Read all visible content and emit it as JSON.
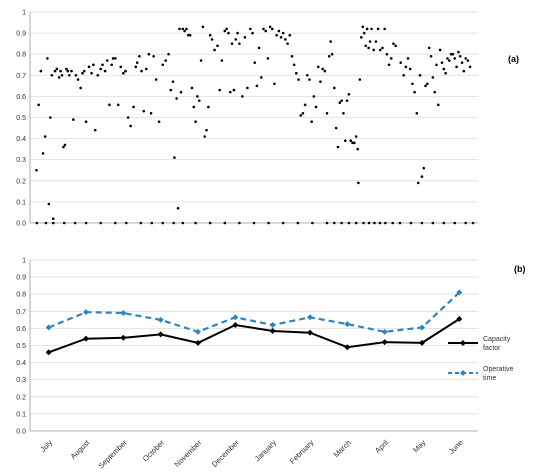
{
  "chart_data": [
    {
      "panel_label": "(a)",
      "type": "scatter",
      "ylim": [
        0,
        1
      ],
      "yticks": [
        "0.0",
        "0.1",
        "0.2",
        "0.3",
        "0.4",
        "0.5",
        "0.6",
        "0.7",
        "0.8",
        "0.9",
        "1"
      ],
      "grid": true,
      "x_unit": "month index (0 = start of July, 12 = end of June)",
      "points": [
        [
          0.04,
          0.25
        ],
        [
          0.1,
          0.56
        ],
        [
          0.16,
          0.72
        ],
        [
          0.22,
          0.33
        ],
        [
          0.28,
          0.41
        ],
        [
          0.34,
          0.78
        ],
        [
          0.38,
          0.09
        ],
        [
          0.42,
          0.5
        ],
        [
          0.46,
          0.7
        ],
        [
          0.5,
          0.02
        ],
        [
          0.55,
          0.72
        ],
        [
          0.6,
          0.73
        ],
        [
          0.66,
          0.69
        ],
        [
          0.7,
          0.72
        ],
        [
          0.74,
          0.7
        ],
        [
          0.78,
          0.36
        ],
        [
          0.82,
          0.37
        ],
        [
          0.86,
          0.73
        ],
        [
          0.9,
          0.72
        ],
        [
          0.94,
          0.7
        ],
        [
          1.0,
          0.72
        ],
        [
          1.05,
          0.49
        ],
        [
          1.12,
          0.7
        ],
        [
          1.18,
          0.68
        ],
        [
          1.25,
          0.64
        ],
        [
          1.3,
          0.71
        ],
        [
          1.35,
          0.72
        ],
        [
          1.4,
          0.48
        ],
        [
          1.48,
          0.74
        ],
        [
          1.55,
          0.71
        ],
        [
          1.6,
          0.75
        ],
        [
          1.65,
          0.44
        ],
        [
          1.72,
          0.7
        ],
        [
          1.8,
          0.73
        ],
        [
          1.85,
          0.75
        ],
        [
          1.92,
          0.72
        ],
        [
          1.98,
          0.77
        ],
        [
          2.04,
          0.56
        ],
        [
          2.1,
          0.75
        ],
        [
          2.14,
          0.78
        ],
        [
          2.2,
          0.78
        ],
        [
          2.28,
          0.56
        ],
        [
          2.35,
          0.74
        ],
        [
          2.42,
          0.71
        ],
        [
          2.48,
          0.72
        ],
        [
          2.55,
          0.5
        ],
        [
          2.62,
          0.46
        ],
        [
          2.7,
          0.55
        ],
        [
          2.76,
          0.74
        ],
        [
          2.8,
          0.76
        ],
        [
          2.86,
          0.79
        ],
        [
          2.92,
          0.72
        ],
        [
          2.98,
          0.53
        ],
        [
          3.05,
          0.73
        ],
        [
          3.12,
          0.8
        ],
        [
          3.18,
          0.52
        ],
        [
          3.25,
          0.79
        ],
        [
          3.32,
          0.68
        ],
        [
          3.4,
          0.48
        ],
        [
          3.5,
          0.75
        ],
        [
          3.58,
          0.77
        ],
        [
          3.66,
          0.8
        ],
        [
          3.72,
          0.63
        ],
        [
          3.78,
          0.67
        ],
        [
          3.82,
          0.31
        ],
        [
          3.88,
          0.59
        ],
        [
          3.92,
          0.07
        ],
        [
          3.96,
          0.92
        ],
        [
          4.0,
          0.62
        ],
        [
          4.05,
          0.92
        ],
        [
          4.1,
          0.91
        ],
        [
          4.15,
          0.92
        ],
        [
          4.2,
          0.89
        ],
        [
          4.25,
          0.89
        ],
        [
          4.3,
          0.64
        ],
        [
          4.35,
          0.55
        ],
        [
          4.4,
          0.48
        ],
        [
          4.45,
          0.6
        ],
        [
          4.5,
          0.58
        ],
        [
          4.55,
          0.77
        ],
        [
          4.6,
          0.93
        ],
        [
          4.65,
          0.41
        ],
        [
          4.7,
          0.44
        ],
        [
          4.75,
          0.55
        ],
        [
          4.8,
          0.89
        ],
        [
          4.85,
          0.87
        ],
        [
          4.92,
          0.82
        ],
        [
          5.0,
          0.84
        ],
        [
          5.06,
          0.63
        ],
        [
          5.12,
          0.77
        ],
        [
          5.2,
          0.91
        ],
        [
          5.25,
          0.92
        ],
        [
          5.3,
          0.9
        ],
        [
          5.35,
          0.62
        ],
        [
          5.4,
          0.85
        ],
        [
          5.45,
          0.63
        ],
        [
          5.5,
          0.87
        ],
        [
          5.55,
          0.9
        ],
        [
          5.6,
          0.85
        ],
        [
          5.68,
          0.6
        ],
        [
          5.75,
          0.88
        ],
        [
          5.82,
          0.64
        ],
        [
          5.9,
          0.92
        ],
        [
          5.96,
          0.9
        ],
        [
          6.02,
          0.76
        ],
        [
          6.08,
          0.65
        ],
        [
          6.14,
          0.83
        ],
        [
          6.2,
          0.69
        ],
        [
          6.26,
          0.92
        ],
        [
          6.32,
          0.91
        ],
        [
          6.38,
          0.78
        ],
        [
          6.44,
          0.93
        ],
        [
          6.5,
          0.92
        ],
        [
          6.56,
          0.66
        ],
        [
          6.62,
          0.89
        ],
        [
          6.68,
          0.91
        ],
        [
          6.74,
          0.88
        ],
        [
          6.8,
          0.9
        ],
        [
          6.86,
          0.87
        ],
        [
          6.92,
          0.85
        ],
        [
          6.98,
          0.89
        ],
        [
          7.04,
          0.79
        ],
        [
          7.1,
          0.75
        ],
        [
          7.16,
          0.71
        ],
        [
          7.22,
          0.68
        ],
        [
          7.28,
          0.51
        ],
        [
          7.34,
          0.52
        ],
        [
          7.4,
          0.56
        ],
        [
          7.46,
          0.7
        ],
        [
          7.52,
          0.68
        ],
        [
          7.58,
          0.48
        ],
        [
          7.64,
          0.6
        ],
        [
          7.7,
          0.55
        ],
        [
          7.76,
          0.74
        ],
        [
          7.82,
          0.67
        ],
        [
          7.88,
          0.73
        ],
        [
          7.94,
          0.72
        ],
        [
          8.0,
          0.52
        ],
        [
          8.06,
          0.79
        ],
        [
          8.1,
          0.86
        ],
        [
          8.14,
          0.8
        ],
        [
          8.2,
          0.64
        ],
        [
          8.25,
          0.45
        ],
        [
          8.3,
          0.36
        ],
        [
          8.35,
          0.57
        ],
        [
          8.4,
          0.58
        ],
        [
          8.45,
          0.52
        ],
        [
          8.5,
          0.39
        ],
        [
          8.55,
          0.58
        ],
        [
          8.6,
          0.61
        ],
        [
          8.65,
          0.39
        ],
        [
          8.7,
          0.38
        ],
        [
          8.75,
          0.38
        ],
        [
          8.8,
          0.41
        ],
        [
          8.84,
          0.35
        ],
        [
          8.86,
          0.19
        ],
        [
          8.9,
          0.68
        ],
        [
          8.94,
          0.88
        ],
        [
          8.98,
          0.93
        ],
        [
          9.02,
          0.9
        ],
        [
          9.06,
          0.84
        ],
        [
          9.1,
          0.92
        ],
        [
          9.14,
          0.83
        ],
        [
          9.18,
          0.86
        ],
        [
          9.22,
          0.92
        ],
        [
          9.28,
          0.82
        ],
        [
          9.34,
          0.86
        ],
        [
          9.4,
          0.92
        ],
        [
          9.46,
          0.82
        ],
        [
          9.52,
          0.83
        ],
        [
          9.58,
          0.92
        ],
        [
          9.64,
          0.8
        ],
        [
          9.7,
          0.75
        ],
        [
          9.76,
          0.78
        ],
        [
          9.82,
          0.85
        ],
        [
          9.88,
          0.84
        ],
        [
          10.02,
          0.76
        ],
        [
          10.1,
          0.7
        ],
        [
          10.16,
          0.74
        ],
        [
          10.22,
          0.78
        ],
        [
          10.28,
          0.73
        ],
        [
          10.34,
          0.66
        ],
        [
          10.4,
          0.62
        ],
        [
          10.46,
          0.52
        ],
        [
          10.5,
          0.19
        ],
        [
          10.55,
          0.7
        ],
        [
          10.6,
          0.22
        ],
        [
          10.65,
          0.26
        ],
        [
          10.7,
          0.65
        ],
        [
          10.75,
          0.66
        ],
        [
          10.8,
          0.83
        ],
        [
          10.85,
          0.79
        ],
        [
          10.9,
          0.69
        ],
        [
          10.95,
          0.62
        ],
        [
          11.0,
          0.75
        ],
        [
          11.05,
          0.56
        ],
        [
          11.1,
          0.82
        ],
        [
          11.15,
          0.76
        ],
        [
          11.2,
          0.73
        ],
        [
          11.25,
          0.71
        ],
        [
          11.3,
          0.78
        ],
        [
          11.35,
          0.77
        ],
        [
          11.4,
          0.8
        ],
        [
          11.45,
          0.8
        ],
        [
          11.5,
          0.78
        ],
        [
          11.55,
          0.74
        ],
        [
          11.6,
          0.81
        ],
        [
          11.65,
          0.79
        ],
        [
          11.7,
          0.76
        ],
        [
          11.75,
          0.72
        ],
        [
          11.8,
          0.78
        ],
        [
          11.86,
          0.77
        ],
        [
          11.92,
          0.74
        ]
      ],
      "zero_points_x": [
        0.05,
        0.3,
        0.5,
        0.8,
        1.1,
        1.4,
        1.8,
        2.2,
        2.5,
        2.9,
        3.2,
        3.5,
        3.8,
        4.05,
        4.4,
        4.8,
        5.2,
        5.6,
        6.0,
        6.4,
        6.8,
        7.2,
        7.6,
        8.0,
        8.2,
        8.4,
        8.6,
        8.8,
        9.0,
        9.15,
        9.3,
        9.45,
        9.6,
        9.8,
        10.0,
        10.3,
        10.6,
        10.9,
        11.2,
        11.5,
        11.8,
        12.0
      ]
    },
    {
      "panel_label": "(b)",
      "type": "line",
      "ylim": [
        0,
        1
      ],
      "yticks": [
        "0.0",
        "0.1",
        "0.2",
        "0.3",
        "0.4",
        "0.5",
        "0.6",
        "0.7",
        "0.8",
        "0.9",
        "1"
      ],
      "grid": true,
      "categories": [
        "July",
        "August",
        "September",
        "October",
        "November",
        "December",
        "January",
        "February",
        "March",
        "April",
        "May",
        "June"
      ],
      "series": [
        {
          "name": "Capacity factor",
          "color": "#000000",
          "style": "solid",
          "values": [
            0.46,
            0.54,
            0.545,
            0.565,
            0.515,
            0.62,
            0.585,
            0.575,
            0.49,
            0.52,
            0.515,
            0.655
          ]
        },
        {
          "name": "Operative time",
          "color": "#2e86c1",
          "style": "dashed",
          "values": [
            0.605,
            0.695,
            0.69,
            0.65,
            0.58,
            0.665,
            0.62,
            0.665,
            0.625,
            0.58,
            0.605,
            0.81
          ]
        }
      ],
      "legend_position": "right"
    }
  ]
}
